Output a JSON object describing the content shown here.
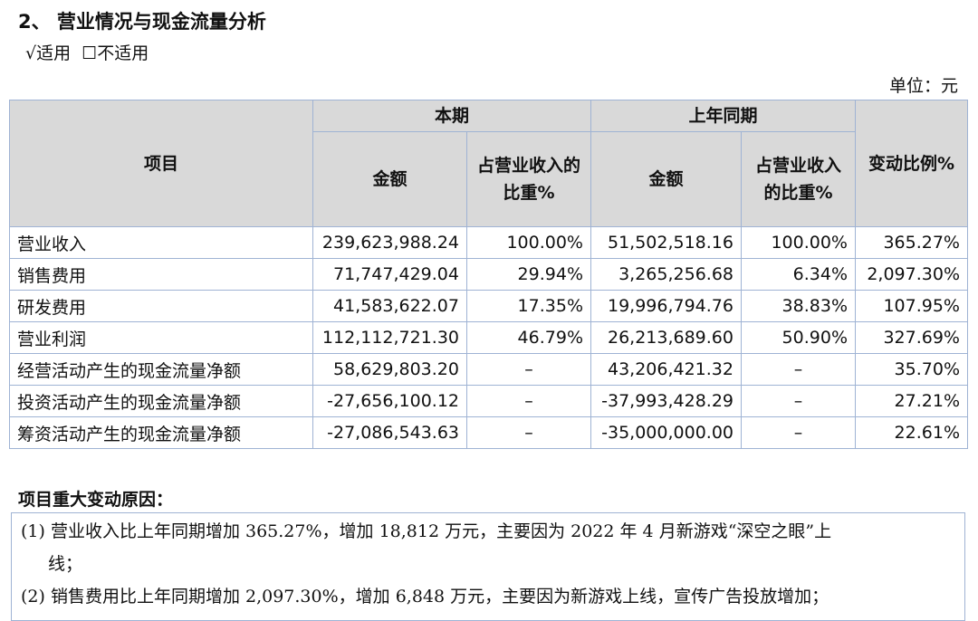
{
  "title": "2、  营业情况与现金流量分析",
  "applicability": {
    "applicable": "√适用",
    "not_applicable": "☐不适用"
  },
  "unit": "单位：元",
  "table": {
    "headers": {
      "item": "项目",
      "current": "本期",
      "prior": "上年同期",
      "amount": "金额",
      "ratio_current": "占营业收入的比重%",
      "ratio_prior": "占营业收入的比重%",
      "change": "变动比例%"
    },
    "rows": [
      [
        "营业收入",
        "239,623,988.24",
        "100.00%",
        "51,502,518.16",
        "100.00%",
        "365.27%"
      ],
      [
        "销售费用",
        "71,747,429.04",
        "29.94%",
        "3,265,256.68",
        "6.34%",
        "2,097.30%"
      ],
      [
        "研发费用",
        "41,583,622.07",
        "17.35%",
        "19,996,794.76",
        "38.83%",
        "107.95%"
      ],
      [
        "营业利润",
        "112,112,721.30",
        "46.79%",
        "26,213,689.60",
        "50.90%",
        "327.69%"
      ],
      [
        "经营活动产生的现金流量净额",
        "58,629,803.20",
        "–",
        "43,206,421.32",
        "–",
        "35.70%"
      ],
      [
        "投资活动产生的现金流量净额",
        "-27,656,100.12",
        "–",
        "-37,993,428.29",
        "–",
        "27.21%"
      ],
      [
        "筹资活动产生的现金流量净额",
        "-27,086,543.63",
        "–",
        "-35,000,000.00",
        "–",
        "22.61%"
      ]
    ]
  },
  "reasons": {
    "heading": "项目重大变动原因：",
    "items": [
      "(1) 营业收入比上年同期增加 365.27%，增加 18,812 万元，主要因为 2022 年 4 月新游戏“深空之眼”上",
      "线；",
      "(2) 销售费用比上年同期增加 2,097.30%，增加 6,848 万元，主要因为新游戏上线，宣传广告投放增加；"
    ]
  }
}
